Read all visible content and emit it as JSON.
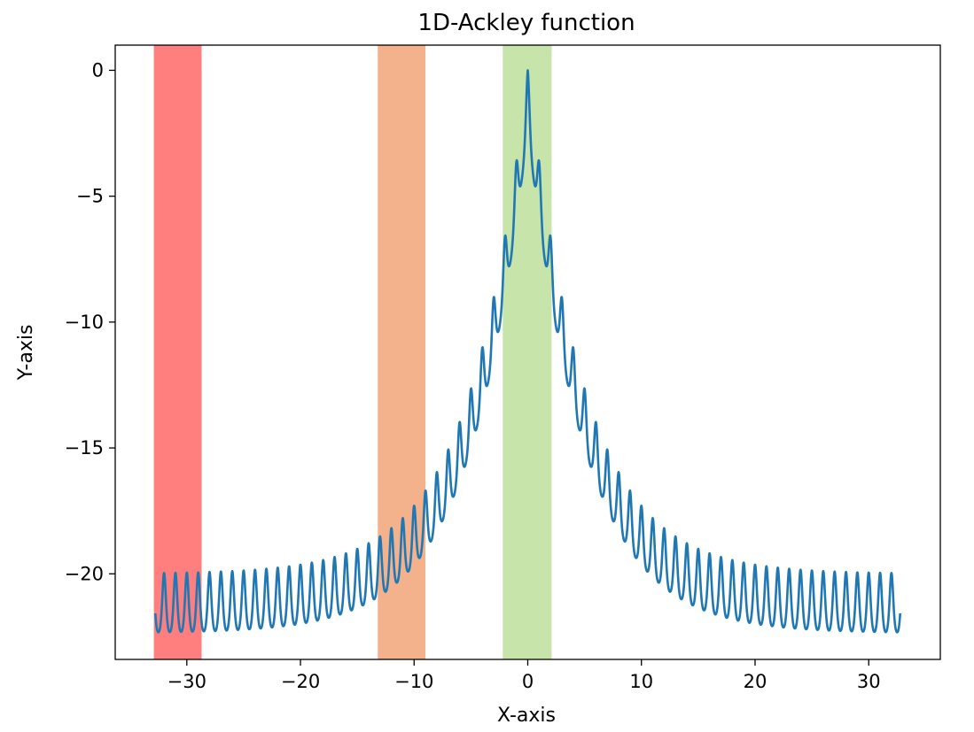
{
  "chart_data": {
    "type": "line",
    "title": "1D-Ackley function",
    "xlabel": "X-axis",
    "ylabel": "Y-axis",
    "xlim": [
      -36.3,
      36.3
    ],
    "ylim": [
      -23.4,
      1.0
    ],
    "xticks": [
      {
        "value": -30,
        "label": "−30"
      },
      {
        "value": -20,
        "label": "−20"
      },
      {
        "value": -10,
        "label": "−10"
      },
      {
        "value": 0,
        "label": "0"
      },
      {
        "value": 10,
        "label": "10"
      },
      {
        "value": 20,
        "label": "20"
      },
      {
        "value": 30,
        "label": "30"
      }
    ],
    "yticks": [
      {
        "value": 0,
        "label": "0"
      },
      {
        "value": -5,
        "label": "−5"
      },
      {
        "value": -10,
        "label": "−10"
      },
      {
        "value": -15,
        "label": "−15"
      },
      {
        "value": -20,
        "label": "−20"
      }
    ],
    "grid": false,
    "series": [
      {
        "function": "negative 1D Ackley",
        "x_range": [
          -32.768,
          32.768
        ],
        "color": "#1f77b4"
      }
    ],
    "bands": [
      {
        "x0": -32.9,
        "x1": -28.7,
        "color": "#ff0000",
        "opacity": 0.5
      },
      {
        "x0": -13.2,
        "x1": -9.0,
        "color": "#e8661a",
        "opacity": 0.5
      },
      {
        "x0": -2.2,
        "x1": 2.1,
        "color": "#8fcc57",
        "opacity": 0.5
      }
    ]
  }
}
